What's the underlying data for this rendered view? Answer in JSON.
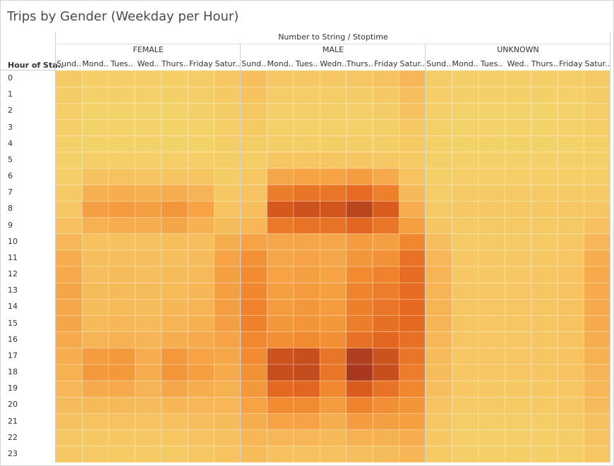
{
  "title": "Trips by Gender (Weekday per Hour)",
  "column_header_title": "Number to String / Stoptime",
  "row_header_title": "Hour of Sta..",
  "genders": [
    "FEMALE",
    "MALE",
    "UNKNOWN"
  ],
  "day_labels": {
    "FEMALE": [
      "Sund..",
      "Mond..",
      "Tues..",
      "Wed..",
      "Thurs..",
      "Friday",
      "Satur.."
    ],
    "MALE": [
      "Sund..",
      "Mond..",
      "Tues..",
      "Wedn..",
      "Thurs..",
      "Friday",
      "Satur.."
    ],
    "UNKNOWN": [
      "Sund..",
      "Mond..",
      "Tues..",
      "Wed..",
      "Thurs..",
      "Friday",
      "Satur.."
    ]
  },
  "hours": [
    "0",
    "1",
    "2",
    "3",
    "4",
    "5",
    "6",
    "7",
    "8",
    "9",
    "10",
    "11",
    "12",
    "13",
    "14",
    "15",
    "16",
    "17",
    "18",
    "19",
    "20",
    "21",
    "22",
    "23"
  ],
  "chart_data": {
    "type": "heatmap",
    "title": "Trips by Gender (Weekday per Hour)",
    "x_header": "Number to String / Stoptime",
    "y_header": "Hour of Sta..",
    "note": "values are relative intensities 0-100 estimated from color",
    "columns_per_gender": [
      "Sunday",
      "Monday",
      "Tuesday",
      "Wednesday",
      "Thursday",
      "Friday",
      "Saturday"
    ],
    "series": [
      {
        "name": "FEMALE",
        "values": [
          [
            8,
            5,
            5,
            5,
            5,
            6,
            10
          ],
          [
            6,
            3,
            3,
            3,
            3,
            4,
            8
          ],
          [
            5,
            2,
            2,
            2,
            2,
            3,
            6
          ],
          [
            4,
            2,
            2,
            2,
            2,
            2,
            5
          ],
          [
            3,
            2,
            2,
            2,
            2,
            2,
            4
          ],
          [
            3,
            5,
            5,
            5,
            5,
            5,
            4
          ],
          [
            5,
            14,
            14,
            13,
            13,
            12,
            6
          ],
          [
            8,
            28,
            30,
            28,
            30,
            26,
            10
          ],
          [
            12,
            38,
            40,
            38,
            44,
            36,
            14
          ],
          [
            16,
            28,
            30,
            30,
            34,
            28,
            20
          ],
          [
            24,
            16,
            16,
            16,
            18,
            18,
            30
          ],
          [
            30,
            18,
            18,
            18,
            18,
            20,
            36
          ],
          [
            32,
            18,
            20,
            18,
            20,
            22,
            38
          ],
          [
            34,
            20,
            22,
            20,
            22,
            24,
            38
          ],
          [
            34,
            20,
            22,
            20,
            24,
            26,
            38
          ],
          [
            34,
            22,
            24,
            22,
            26,
            28,
            38
          ],
          [
            32,
            26,
            28,
            26,
            30,
            32,
            36
          ],
          [
            30,
            40,
            42,
            30,
            42,
            36,
            34
          ],
          [
            28,
            42,
            42,
            30,
            44,
            38,
            32
          ],
          [
            24,
            32,
            32,
            26,
            34,
            30,
            28
          ],
          [
            20,
            22,
            22,
            20,
            24,
            24,
            24
          ],
          [
            16,
            14,
            14,
            14,
            16,
            18,
            20
          ],
          [
            12,
            10,
            10,
            10,
            12,
            14,
            16
          ],
          [
            10,
            8,
            8,
            8,
            8,
            10,
            14
          ]
        ]
      },
      {
        "name": "MALE",
        "values": [
          [
            18,
            10,
            10,
            10,
            12,
            14,
            24
          ],
          [
            14,
            6,
            6,
            6,
            6,
            8,
            18
          ],
          [
            10,
            4,
            4,
            4,
            4,
            6,
            14
          ],
          [
            8,
            3,
            3,
            3,
            3,
            4,
            10
          ],
          [
            6,
            4,
            4,
            4,
            4,
            4,
            8
          ],
          [
            6,
            12,
            12,
            12,
            12,
            10,
            8
          ],
          [
            10,
            34,
            36,
            36,
            40,
            32,
            14
          ],
          [
            14,
            58,
            62,
            62,
            68,
            56,
            22
          ],
          [
            18,
            80,
            84,
            82,
            92,
            78,
            30
          ],
          [
            24,
            60,
            64,
            64,
            72,
            62,
            38
          ],
          [
            36,
            34,
            34,
            34,
            40,
            38,
            52
          ],
          [
            46,
            34,
            36,
            34,
            44,
            46,
            64
          ],
          [
            50,
            36,
            38,
            36,
            50,
            54,
            68
          ],
          [
            52,
            38,
            40,
            38,
            54,
            58,
            68
          ],
          [
            54,
            40,
            42,
            40,
            56,
            62,
            70
          ],
          [
            54,
            42,
            44,
            42,
            58,
            66,
            70
          ],
          [
            52,
            48,
            50,
            48,
            66,
            72,
            66
          ],
          [
            50,
            84,
            86,
            62,
            96,
            84,
            62
          ],
          [
            46,
            86,
            88,
            62,
            100,
            86,
            58
          ],
          [
            42,
            70,
            72,
            52,
            78,
            64,
            52
          ],
          [
            36,
            50,
            50,
            40,
            54,
            48,
            44
          ],
          [
            30,
            36,
            36,
            30,
            40,
            38,
            38
          ],
          [
            24,
            24,
            24,
            22,
            28,
            28,
            30
          ],
          [
            20,
            16,
            16,
            16,
            18,
            20,
            24
          ]
        ]
      },
      {
        "name": "UNKNOWN",
        "values": [
          [
            6,
            4,
            4,
            4,
            4,
            5,
            8
          ],
          [
            5,
            3,
            3,
            3,
            3,
            3,
            6
          ],
          [
            4,
            2,
            2,
            2,
            2,
            2,
            5
          ],
          [
            3,
            2,
            2,
            2,
            2,
            2,
            4
          ],
          [
            3,
            2,
            2,
            2,
            2,
            2,
            3
          ],
          [
            3,
            3,
            3,
            3,
            3,
            3,
            3
          ],
          [
            4,
            5,
            5,
            5,
            5,
            5,
            5
          ],
          [
            6,
            8,
            8,
            8,
            8,
            8,
            8
          ],
          [
            8,
            10,
            10,
            10,
            10,
            10,
            12
          ],
          [
            12,
            8,
            8,
            8,
            8,
            9,
            16
          ],
          [
            18,
            8,
            8,
            8,
            8,
            10,
            24
          ],
          [
            24,
            10,
            10,
            10,
            10,
            12,
            30
          ],
          [
            26,
            10,
            10,
            10,
            12,
            14,
            32
          ],
          [
            26,
            12,
            12,
            12,
            12,
            14,
            32
          ],
          [
            26,
            12,
            12,
            12,
            12,
            14,
            32
          ],
          [
            26,
            12,
            12,
            12,
            12,
            14,
            32
          ],
          [
            24,
            12,
            12,
            12,
            12,
            14,
            30
          ],
          [
            22,
            12,
            12,
            12,
            12,
            14,
            28
          ],
          [
            20,
            12,
            12,
            12,
            12,
            14,
            26
          ],
          [
            18,
            10,
            10,
            10,
            10,
            12,
            24
          ],
          [
            14,
            8,
            8,
            8,
            8,
            10,
            20
          ],
          [
            12,
            6,
            6,
            6,
            6,
            8,
            16
          ],
          [
            10,
            5,
            5,
            5,
            5,
            6,
            14
          ],
          [
            8,
            4,
            4,
            4,
            4,
            5,
            12
          ]
        ]
      }
    ],
    "color_scale": [
      "#f4d46c",
      "#f7b656",
      "#f28a30",
      "#e0611d",
      "#a8391f"
    ]
  }
}
